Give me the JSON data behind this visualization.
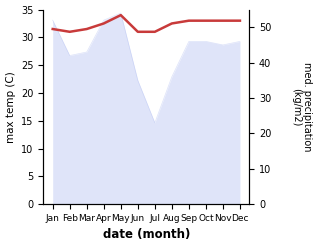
{
  "months": [
    "Jan",
    "Feb",
    "Mar",
    "Apr",
    "May",
    "Jun",
    "Jul",
    "Aug",
    "Sep",
    "Oct",
    "Nov",
    "Dec"
  ],
  "temp": [
    31.5,
    31.0,
    31.5,
    32.5,
    34.0,
    31.0,
    31.0,
    32.5,
    33.0,
    33.0,
    33.0,
    33.0
  ],
  "precip": [
    52.0,
    42.0,
    43.0,
    52.0,
    54.0,
    35.0,
    23.0,
    36.0,
    46.0,
    46.0,
    45.0,
    46.0
  ],
  "temp_color": "#c83a3a",
  "precip_color_fill": "#c5cef5",
  "precip_color_edge": "#aab8f0",
  "ylim_left": [
    0,
    35
  ],
  "ylim_right": [
    0,
    55
  ],
  "yticks_left": [
    0,
    5,
    10,
    15,
    20,
    25,
    30,
    35
  ],
  "yticks_right": [
    0,
    10,
    20,
    30,
    40,
    50
  ],
  "ylabel_left": "max temp (C)",
  "ylabel_right": "med. precipitation\n(kg/m2)",
  "xlabel": "date (month)",
  "temp_linewidth": 1.8,
  "background_color": "#ffffff"
}
